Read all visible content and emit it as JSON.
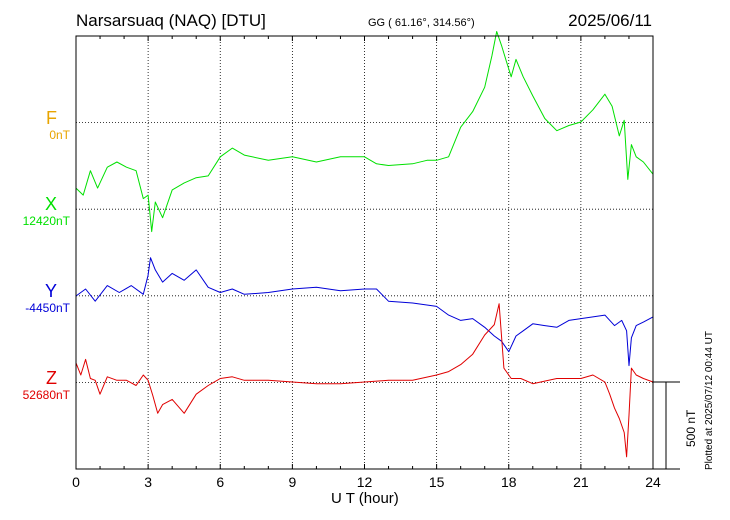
{
  "header": {
    "station": "Narsarsuaq (NAQ)  [DTU]",
    "coords": "GG ( 61.16°, 314.56°)",
    "date": "2025/06/11"
  },
  "colors": {
    "F": "#e8a400",
    "X": "#00e000",
    "Y": "#0000d8",
    "Z": "#e00000"
  },
  "components": {
    "F": {
      "letter": "F",
      "base": "0nT"
    },
    "X": {
      "letter": "X",
      "base": "12420nT"
    },
    "Y": {
      "letter": "Y",
      "base": "-4450nT"
    },
    "Z": {
      "letter": "Z",
      "base": "52680nT"
    }
  },
  "footer": {
    "xlabel": "U T (hour)",
    "plotted": "Plotted at 2025/07/12 00:44 UT",
    "scale": "500 nT"
  },
  "chart_data": {
    "type": "line",
    "xlabel": "U T (hour)",
    "ylabel": "",
    "xlim": [
      0,
      24
    ],
    "xticks": [
      0,
      3,
      6,
      9,
      12,
      15,
      18,
      21,
      24
    ],
    "grid": true,
    "scale_bar_nT": 500,
    "series": [
      {
        "name": "F",
        "baseline": "0nT",
        "x": [],
        "y": []
      },
      {
        "name": "X",
        "baseline": "12420nT",
        "x": [
          0,
          0.3,
          0.6,
          0.9,
          1.3,
          1.7,
          2.1,
          2.5,
          2.8,
          3.0,
          3.15,
          3.3,
          3.6,
          4.0,
          4.5,
          5.0,
          5.5,
          6.0,
          6.5,
          7.0,
          8.0,
          9.0,
          10.0,
          11.0,
          12.0,
          12.5,
          13.0,
          14.0,
          14.6,
          15.0,
          15.5,
          16.0,
          16.5,
          17.0,
          17.3,
          17.5,
          17.7,
          17.9,
          18.1,
          18.3,
          18.6,
          19.0,
          19.5,
          20.0,
          20.5,
          21.0,
          21.5,
          22.0,
          22.3,
          22.6,
          22.8,
          22.95,
          23.1,
          23.3,
          23.6,
          24.0
        ],
        "y": [
          120,
          80,
          220,
          120,
          240,
          270,
          240,
          220,
          60,
          80,
          -130,
          40,
          -50,
          110,
          150,
          180,
          190,
          300,
          350,
          310,
          280,
          300,
          270,
          300,
          300,
          260,
          250,
          260,
          280,
          280,
          300,
          470,
          560,
          700,
          880,
          1020,
          940,
          850,
          760,
          860,
          760,
          650,
          520,
          450,
          480,
          500,
          570,
          660,
          590,
          420,
          510,
          170,
          370,
          300,
          270,
          200
        ]
      },
      {
        "name": "Y",
        "baseline": "-4450nT",
        "x": [
          0,
          0.4,
          0.8,
          1.3,
          1.8,
          2.3,
          2.8,
          3.0,
          3.1,
          3.3,
          3.6,
          4.0,
          4.5,
          5.0,
          5.5,
          6.0,
          6.5,
          7.0,
          8.0,
          9.0,
          10.0,
          11.0,
          12.0,
          12.5,
          13.0,
          14.0,
          15.0,
          15.5,
          16.0,
          16.5,
          17.0,
          17.4,
          17.7,
          18.0,
          18.3,
          18.6,
          19.0,
          19.5,
          20.0,
          20.5,
          21.0,
          21.5,
          22.0,
          22.4,
          22.7,
          22.9,
          23.0,
          23.1,
          23.3,
          23.6,
          24.0
        ],
        "y": [
          0,
          40,
          -30,
          60,
          20,
          60,
          10,
          120,
          220,
          150,
          80,
          130,
          90,
          150,
          50,
          20,
          40,
          10,
          20,
          40,
          50,
          30,
          40,
          40,
          -30,
          -40,
          -60,
          -110,
          -140,
          -130,
          -180,
          -230,
          -260,
          -320,
          -230,
          -200,
          -160,
          -170,
          -180,
          -140,
          -130,
          -120,
          -110,
          -170,
          -140,
          -200,
          -400,
          -240,
          -170,
          -150,
          -120
        ]
      },
      {
        "name": "Z",
        "baseline": "52680nT",
        "x": [
          0,
          0.2,
          0.4,
          0.6,
          0.8,
          1.0,
          1.3,
          1.7,
          2.1,
          2.5,
          2.8,
          3.0,
          3.2,
          3.4,
          3.6,
          4.0,
          4.5,
          5.0,
          5.5,
          6.0,
          6.5,
          7.0,
          8.0,
          9.0,
          10.0,
          11.0,
          12.0,
          13.0,
          14.0,
          15.0,
          15.5,
          16.0,
          16.5,
          17.0,
          17.4,
          17.6,
          17.8,
          18.1,
          18.5,
          19.0,
          20.0,
          21.0,
          21.5,
          22.0,
          22.2,
          22.4,
          22.6,
          22.8,
          22.9,
          23.0,
          23.1,
          23.3,
          23.6,
          24.0
        ],
        "y": [
          110,
          40,
          130,
          20,
          10,
          -70,
          30,
          10,
          10,
          -20,
          40,
          10,
          -80,
          -180,
          -130,
          -100,
          -180,
          -70,
          -20,
          20,
          30,
          10,
          10,
          0,
          -10,
          -10,
          0,
          10,
          10,
          40,
          60,
          100,
          160,
          270,
          330,
          450,
          80,
          20,
          20,
          -10,
          20,
          20,
          40,
          0,
          -70,
          -150,
          -210,
          -290,
          -430,
          -190,
          80,
          40,
          20,
          0
        ]
      }
    ]
  }
}
